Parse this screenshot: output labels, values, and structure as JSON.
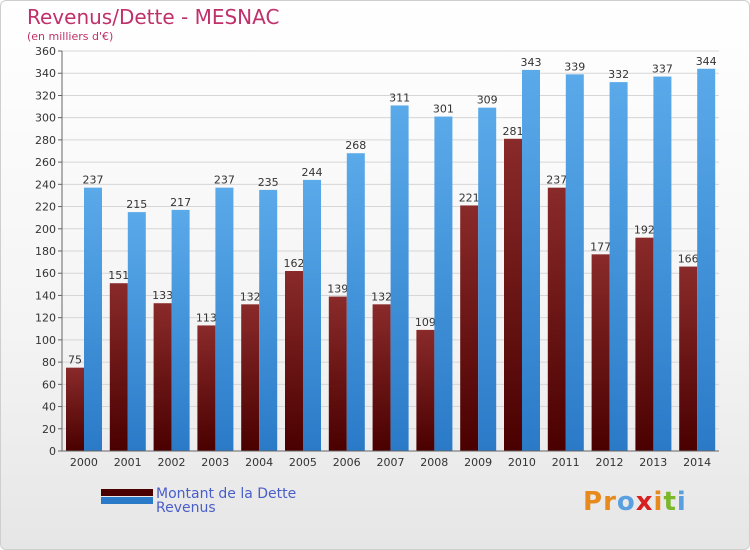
{
  "title": "Revenus/Dette - MESNAC",
  "subtitle": "(en milliers d'€)",
  "colors": {
    "dette_top": "#8a2a2a",
    "dette_bottom": "#4a0000",
    "revenus_top": "#5aaaea",
    "revenus_bottom": "#2a7ac8",
    "title": "#c0306a",
    "legend_text": "#4a5ec8"
  },
  "legend": [
    {
      "label": "Montant de la Dette",
      "icon": "dark-red-swatch"
    },
    {
      "label": "Revenus",
      "icon": "blue-swatch"
    }
  ],
  "logo": {
    "letters": [
      "P",
      "r",
      "o",
      "x",
      "i",
      "t",
      "i"
    ],
    "colors": [
      "#e8891e",
      "#e8891e",
      "#5aa0e0",
      "#d82020",
      "#e8891e",
      "#7ab82a",
      "#5aa0e0"
    ]
  },
  "chart_data": {
    "type": "bar",
    "categories": [
      "2000",
      "2001",
      "2002",
      "2003",
      "2004",
      "2005",
      "2006",
      "2007",
      "2008",
      "2009",
      "2010",
      "2011",
      "2012",
      "2013",
      "2014"
    ],
    "series": [
      {
        "name": "Montant de la Dette",
        "values": [
          75,
          151,
          133,
          113,
          132,
          162,
          139,
          132,
          109,
          221,
          281,
          237,
          177,
          192,
          166
        ],
        "labels": [
          "75",
          "151",
          "133",
          "113",
          "132",
          "162",
          "139",
          "132",
          "109",
          "221",
          "281",
          "237",
          "177",
          "192",
          "166"
        ]
      },
      {
        "name": "Revenus",
        "values": [
          237,
          215,
          217,
          237,
          235,
          244,
          268,
          311,
          301,
          309,
          343,
          339,
          332,
          337,
          344
        ],
        "labels": [
          "237",
          "215",
          "217",
          "237",
          "235",
          "244",
          "268",
          "311",
          "301",
          "309",
          "343",
          "339",
          "332",
          "337",
          "344"
        ]
      }
    ],
    "yticks": [
      "0",
      "20",
      "40",
      "60",
      "80",
      "100",
      "120",
      "140",
      "160",
      "180",
      "200",
      "220",
      "240",
      "260",
      "280",
      "300",
      "320",
      "340",
      "360"
    ],
    "ylim": [
      0,
      360
    ],
    "grid": true,
    "legend_position": "bottom-left"
  }
}
